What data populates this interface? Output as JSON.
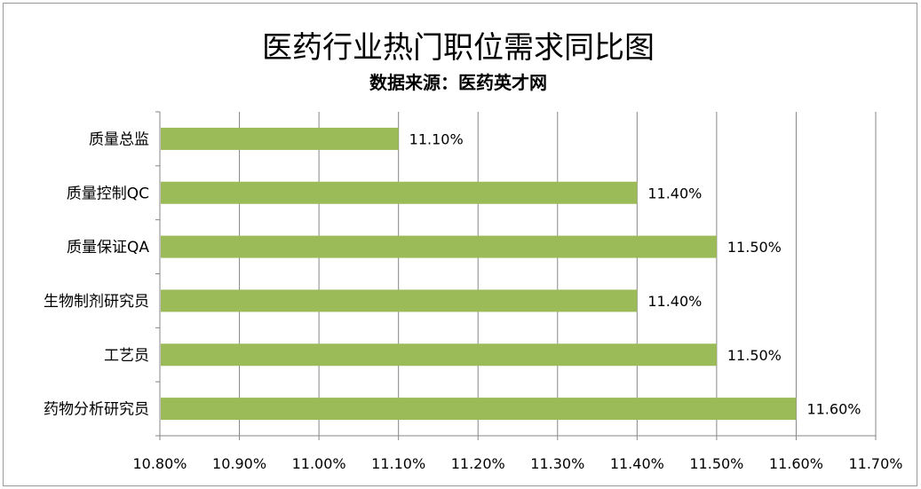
{
  "chart_data": {
    "type": "bar",
    "orientation": "horizontal",
    "title": "医药行业热门职位需求同比图",
    "subtitle": "数据来源：医药英才网",
    "categories": [
      "质量总监",
      "质量控制QC",
      "质量保证QA",
      "生物制剂研究员",
      "工艺员",
      "药物分析研究员"
    ],
    "values": [
      11.1,
      11.4,
      11.5,
      11.4,
      11.5,
      11.6
    ],
    "data_labels": [
      "11.10%",
      "11.40%",
      "11.50%",
      "11.40%",
      "11.50%",
      "11.60%"
    ],
    "xlim": [
      10.8,
      11.7
    ],
    "x_ticks": [
      10.8,
      10.9,
      11.0,
      11.1,
      11.2,
      11.3,
      11.4,
      11.5,
      11.6,
      11.7
    ],
    "x_tick_labels": [
      "10.80%",
      "10.90%",
      "11.00%",
      "11.10%",
      "11.20%",
      "11.30%",
      "11.40%",
      "11.50%",
      "11.60%",
      "11.70%"
    ],
    "grid": "vertical",
    "legend": "none",
    "colors": {
      "bar": "#9bbb59",
      "grid": "#868686",
      "axis": "#868686"
    }
  }
}
